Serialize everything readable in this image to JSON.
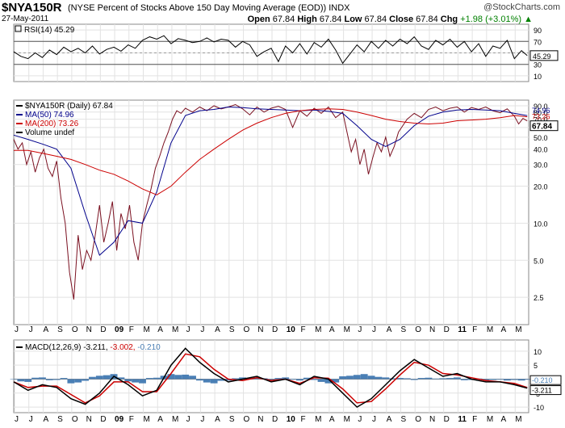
{
  "header": {
    "symbol": "$NYA150R",
    "description": "(NYSE Percent of Stocks Above 150 Day Moving Average (EOD))",
    "exchange": "INDX",
    "date": "27-May-2011",
    "watermark": "@StockCharts.com",
    "quote": {
      "open_label": "Open",
      "open": "67.84",
      "high_label": "High",
      "high": "67.84",
      "low_label": "Low",
      "low": "67.84",
      "close_label": "Close",
      "close": "67.84",
      "chg_label": "Chg",
      "chg": "+1.98 (+3.01%)",
      "chg_arrow": "▲"
    }
  },
  "time_axis": {
    "start": "2008-06",
    "labels": [
      {
        "month": 0,
        "text": "J"
      },
      {
        "month": 1,
        "text": "J"
      },
      {
        "month": 2,
        "text": "A"
      },
      {
        "month": 3,
        "text": "S"
      },
      {
        "month": 4,
        "text": "O"
      },
      {
        "month": 5,
        "text": "N"
      },
      {
        "month": 6,
        "text": "D"
      },
      {
        "month": 7,
        "text": "09",
        "bold": true
      },
      {
        "month": 8,
        "text": "F"
      },
      {
        "month": 9,
        "text": "M"
      },
      {
        "month": 10,
        "text": "A"
      },
      {
        "month": 11,
        "text": "M"
      },
      {
        "month": 12,
        "text": "J"
      },
      {
        "month": 13,
        "text": "J"
      },
      {
        "month": 14,
        "text": "A"
      },
      {
        "month": 15,
        "text": "S"
      },
      {
        "month": 16,
        "text": "O"
      },
      {
        "month": 17,
        "text": "N"
      },
      {
        "month": 18,
        "text": "D"
      },
      {
        "month": 19,
        "text": "10",
        "bold": true
      },
      {
        "month": 20,
        "text": "F"
      },
      {
        "month": 21,
        "text": "M"
      },
      {
        "month": 22,
        "text": "A"
      },
      {
        "month": 23,
        "text": "M"
      },
      {
        "month": 24,
        "text": "J"
      },
      {
        "month": 25,
        "text": "J"
      },
      {
        "month": 26,
        "text": "A"
      },
      {
        "month": 27,
        "text": "S"
      },
      {
        "month": 28,
        "text": "O"
      },
      {
        "month": 29,
        "text": "N"
      },
      {
        "month": 30,
        "text": "D"
      },
      {
        "month": 31,
        "text": "11",
        "bold": true
      },
      {
        "month": 32,
        "text": "F"
      },
      {
        "month": 33,
        "text": "M"
      },
      {
        "month": 34,
        "text": "A"
      },
      {
        "month": 35,
        "text": "M"
      }
    ],
    "end_month": 36
  },
  "chart_data": [
    {
      "type": "line",
      "panel": "rsi",
      "legend": [
        {
          "text": "RSI(14) 45.29",
          "color": "#000000"
        }
      ],
      "ylim": [
        0,
        100
      ],
      "yticks": [
        10,
        30,
        50,
        70,
        90
      ],
      "reference_lines": [
        30,
        70
      ],
      "current_value_label": "45.29",
      "series": [
        {
          "color": "#000000",
          "x": [
            0,
            0.5,
            1,
            1.5,
            2,
            2.5,
            3,
            3.5,
            4,
            4.5,
            5,
            5.5,
            6,
            6.5,
            7,
            7.5,
            8,
            8.5,
            9,
            9.5,
            10,
            10.5,
            11,
            11.5,
            12,
            12.5,
            13,
            13.5,
            14,
            14.5,
            15,
            15.5,
            16,
            16.5,
            17,
            17.5,
            18,
            18.5,
            19,
            19.5,
            20,
            20.5,
            21,
            21.5,
            22,
            22.5,
            23,
            23.5,
            24,
            24.5,
            25,
            25.5,
            26,
            26.5,
            27,
            27.5,
            28,
            28.5,
            29,
            29.5,
            30,
            30.5,
            31,
            31.5,
            32,
            32.5,
            33,
            33.5,
            34,
            34.5,
            35,
            35.5,
            35.9
          ],
          "values": [
            52,
            44,
            40,
            50,
            42,
            55,
            47,
            60,
            52,
            58,
            50,
            62,
            48,
            56,
            60,
            53,
            64,
            58,
            72,
            78,
            74,
            80,
            66,
            75,
            72,
            68,
            70,
            76,
            69,
            74,
            72,
            60,
            70,
            64,
            44,
            52,
            58,
            35,
            62,
            50,
            66,
            48,
            68,
            60,
            74,
            55,
            32,
            48,
            64,
            52,
            70,
            58,
            72,
            62,
            74,
            66,
            78,
            62,
            56,
            72,
            64,
            74,
            60,
            70,
            52,
            66,
            44,
            62,
            58,
            72,
            40,
            54,
            45.29
          ]
        }
      ]
    },
    {
      "type": "line",
      "panel": "price",
      "yscale": "log",
      "ylim": [
        1.5,
        100
      ],
      "yticks": [
        2.5,
        5.0,
        10.0,
        20.0,
        30.0,
        40.0,
        50.0,
        60.0,
        70.0,
        80.0,
        90.0
      ],
      "ytick_labels": [
        "2.5",
        "5.0",
        "10.0",
        "20.0",
        "30.0",
        "40.0",
        "50.0",
        "60.0",
        "70.0",
        "80.0",
        "90.0"
      ],
      "legend": [
        {
          "text": "$NYA150R (Daily) 67.84",
          "color": "#000000"
        },
        {
          "text": "MA(50) 74.96",
          "color": "#00008B"
        },
        {
          "text": "MA(200) 73.26",
          "color": "#CC0000"
        },
        {
          "text": "Volume undef",
          "color": "#000000"
        }
      ],
      "current_value_labels": [
        {
          "text": "74.96",
          "value": 74.96,
          "color": "#00008B"
        },
        {
          "text": "73.26",
          "value": 73.26,
          "color": "#CC0000"
        },
        {
          "text": "67.84",
          "value": 67.84,
          "color": "#000000",
          "boxed": true
        }
      ],
      "series": [
        {
          "name": "$NYA150R (Daily)",
          "color": "#7A1020",
          "x": [
            0,
            0.3,
            0.6,
            0.9,
            1.2,
            1.5,
            1.8,
            2.1,
            2.4,
            2.7,
            3,
            3.3,
            3.6,
            3.9,
            4.2,
            4.5,
            4.8,
            5.1,
            5.4,
            5.7,
            6,
            6.3,
            6.6,
            6.9,
            7.2,
            7.5,
            7.8,
            8.1,
            8.4,
            8.7,
            9,
            9.3,
            9.6,
            9.9,
            10.2,
            10.5,
            10.8,
            11.1,
            11.4,
            11.7,
            12,
            12.5,
            13,
            13.5,
            14,
            14.5,
            15,
            15.5,
            16,
            16.5,
            17,
            17.5,
            18,
            18.5,
            19,
            19.5,
            20,
            20.5,
            21,
            21.5,
            22,
            22.5,
            23,
            23.3,
            23.6,
            23.9,
            24.2,
            24.5,
            24.8,
            25.1,
            25.4,
            25.7,
            26,
            26.3,
            26.6,
            26.9,
            27.2,
            27.5,
            28,
            28.5,
            29,
            29.5,
            30,
            30.5,
            31,
            31.5,
            32,
            32.5,
            33,
            33.5,
            34,
            34.5,
            35,
            35.3,
            35.6,
            35.9
          ],
          "values": [
            48,
            40,
            45,
            30,
            38,
            26,
            34,
            40,
            28,
            24,
            32,
            16,
            10,
            4,
            2.4,
            8,
            4.2,
            6,
            5,
            8,
            14,
            7,
            10,
            15,
            6,
            12,
            9,
            14,
            7,
            5,
            10,
            14,
            19,
            28,
            35,
            45,
            55,
            70,
            82,
            78,
            86,
            80,
            88,
            82,
            90,
            85,
            88,
            92,
            85,
            76,
            88,
            80,
            86,
            89,
            84,
            60,
            82,
            74,
            86,
            78,
            88,
            72,
            80,
            55,
            38,
            48,
            30,
            40,
            25,
            34,
            45,
            38,
            50,
            35,
            42,
            55,
            62,
            70,
            78,
            72,
            84,
            88,
            82,
            86,
            88,
            80,
            87,
            84,
            88,
            82,
            79,
            85,
            74,
            64,
            71,
            67.84
          ]
        },
        {
          "name": "MA(50)",
          "color": "#00008B",
          "x": [
            0,
            1,
            2,
            3,
            4,
            5,
            6,
            7,
            8,
            9,
            10,
            11,
            12,
            13,
            14,
            15,
            16,
            17,
            18,
            19,
            20,
            21,
            22,
            23,
            24,
            25,
            26,
            27,
            28,
            29,
            30,
            31,
            32,
            33,
            34,
            35,
            35.9
          ],
          "values": [
            52,
            48,
            44,
            40,
            28,
            12,
            5.5,
            7,
            10.5,
            10,
            18,
            45,
            75,
            82,
            84,
            88,
            87,
            85,
            84,
            83,
            82,
            83,
            81,
            78,
            62,
            48,
            42,
            48,
            62,
            74,
            80,
            83,
            84,
            83,
            82,
            78,
            74.96
          ]
        },
        {
          "name": "MA(200)",
          "color": "#CC0000",
          "x": [
            0,
            1,
            2,
            3,
            4,
            5,
            6,
            7,
            8,
            9,
            10,
            11,
            12,
            13,
            14,
            15,
            16,
            17,
            18,
            19,
            20,
            21,
            22,
            23,
            24,
            25,
            26,
            27,
            28,
            29,
            30,
            31,
            32,
            33,
            34,
            35,
            35.9
          ],
          "values": [
            39,
            39,
            37,
            35,
            33,
            30,
            27,
            25,
            22,
            19,
            17,
            20,
            26,
            33,
            40,
            48,
            57,
            65,
            72,
            78,
            82,
            84,
            85,
            84,
            80,
            75,
            70,
            67,
            65,
            64,
            65,
            68,
            69,
            70,
            72,
            75,
            73.26
          ]
        }
      ]
    },
    {
      "type": "line",
      "panel": "macd",
      "legend": [
        {
          "text": "MACD(12,26,9) -3.211,",
          "color": "#000000"
        },
        {
          "text": "-3.002,",
          "color": "#CC0000"
        },
        {
          "text": "-0.210",
          "color": "#4A7FB5"
        }
      ],
      "ylim": [
        -12,
        14
      ],
      "yticks": [
        -10,
        -5,
        0,
        5,
        10
      ],
      "current_value_labels": [
        {
          "text": "-0.210",
          "value": -0.21,
          "color": "#4A7FB5"
        },
        {
          "text": "-3.211",
          "value": -3.211,
          "color": "#000000"
        }
      ],
      "series": [
        {
          "name": "MACD(12,26,9)",
          "color": "#000000",
          "x": [
            0,
            1,
            2,
            3,
            4,
            5,
            6,
            7,
            8,
            9,
            10,
            11,
            12,
            13,
            14,
            15,
            16,
            17,
            18,
            19,
            20,
            21,
            22,
            23,
            24,
            25,
            26,
            27,
            28,
            29,
            30,
            31,
            32,
            33,
            34,
            35,
            35.9
          ],
          "values": [
            -1,
            -4,
            -2,
            -3,
            -7,
            -9,
            -5,
            1,
            -2,
            -6,
            -4,
            5,
            11,
            6,
            2,
            -1,
            0,
            1,
            -1,
            0,
            -2,
            1,
            0,
            -5,
            -10,
            -7,
            -2,
            3,
            7,
            4,
            1,
            2,
            0,
            -1,
            -1,
            -2,
            -3.211
          ]
        },
        {
          "name": "Signal",
          "color": "#CC0000",
          "x": [
            0,
            1,
            2,
            3,
            4,
            5,
            6,
            7,
            8,
            9,
            10,
            11,
            12,
            13,
            14,
            15,
            16,
            17,
            18,
            19,
            20,
            21,
            22,
            23,
            24,
            25,
            26,
            27,
            28,
            29,
            30,
            31,
            32,
            33,
            34,
            35,
            35.9
          ],
          "values": [
            -1,
            -3,
            -2.5,
            -2.5,
            -5.5,
            -8.5,
            -6,
            -1,
            -1,
            -4.5,
            -4.5,
            2,
            9,
            8,
            3.5,
            0,
            -0.5,
            0.5,
            -0.5,
            0,
            -1.5,
            0.5,
            0.3,
            -3.5,
            -8.5,
            -8,
            -3.5,
            1.5,
            6,
            5,
            2,
            1.5,
            0.5,
            -0.5,
            -1,
            -1.5,
            -3.002
          ]
        },
        {
          "name": "Histogram",
          "type": "bar",
          "color": "#4A7FB5",
          "x": [
            0,
            0.5,
            1,
            1.5,
            2,
            2.5,
            3,
            3.5,
            4,
            4.5,
            5,
            5.5,
            6,
            6.5,
            7,
            7.5,
            8,
            8.5,
            9,
            9.5,
            10,
            10.5,
            11,
            11.5,
            12,
            12.5,
            13,
            13.5,
            14,
            14.5,
            15,
            15.5,
            16,
            16.5,
            17,
            17.5,
            18,
            18.5,
            19,
            19.5,
            20,
            20.5,
            21,
            21.5,
            22,
            22.5,
            23,
            23.5,
            24,
            24.5,
            25,
            25.5,
            26,
            26.5,
            27,
            27.5,
            28,
            28.5,
            29,
            29.5,
            30,
            30.5,
            31,
            31.5,
            32,
            32.5,
            33,
            33.5,
            34,
            34.5,
            35,
            35.5,
            35.9
          ],
          "values": [
            0,
            -0.8,
            -1,
            0.5,
            0.6,
            -0.4,
            -0.3,
            0.4,
            -1.5,
            -1.2,
            -0.6,
            0.8,
            1.2,
            1.4,
            1.8,
            0.6,
            -0.8,
            -1.2,
            -1.5,
            0.4,
            0.5,
            1.2,
            1.8,
            1.5,
            1.6,
            1.2,
            -0.5,
            -1.2,
            -1.5,
            -0.6,
            -0.5,
            0.3,
            0.6,
            0.4,
            0.5,
            0.3,
            -0.4,
            0.4,
            0.6,
            -0.2,
            -0.5,
            0.5,
            -0.3,
            -1,
            -1.5,
            -1.2,
            1,
            1.2,
            1.5,
            1.8,
            1.2,
            0.8,
            0.6,
            0.3,
            0.4,
            0.3,
            -0.3,
            0.4,
            0.5,
            0.2,
            0.3,
            0.4,
            0.6,
            -0.4,
            -0.3,
            0.2,
            -0.4,
            -0.3,
            -0.2,
            -0.5,
            -0.3,
            -0.5,
            -0.21
          ]
        }
      ]
    }
  ]
}
